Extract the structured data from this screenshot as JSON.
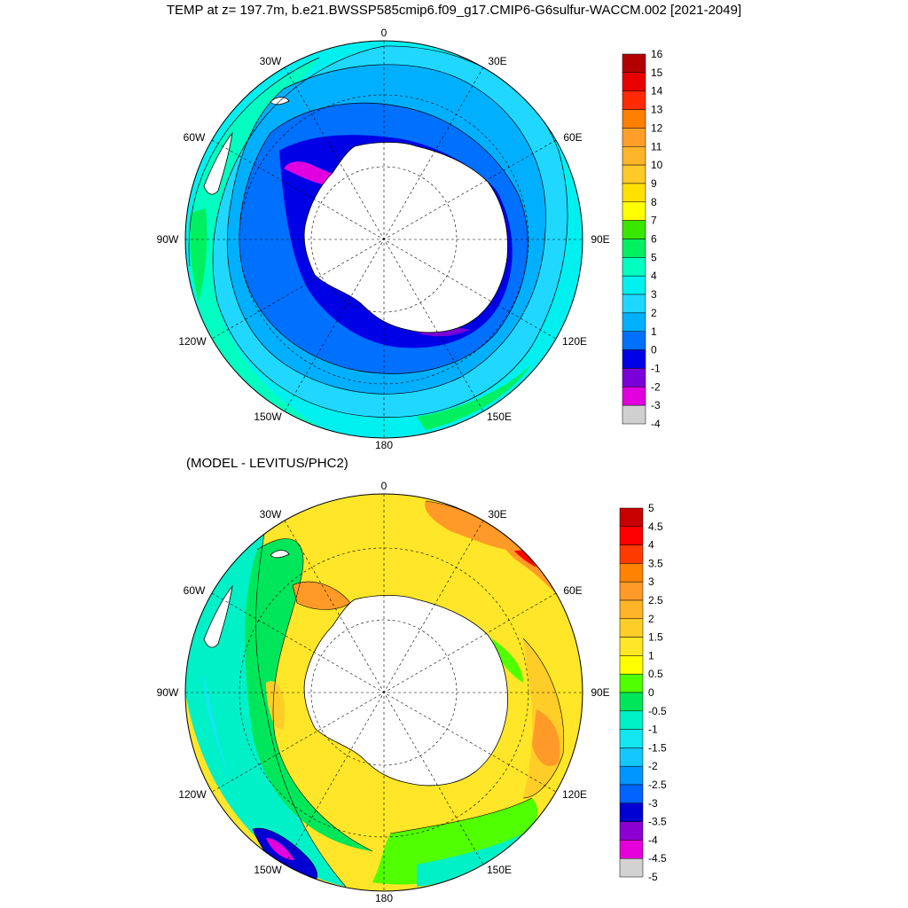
{
  "title": "TEMP at z= 197.7m, b.e21.BWSSP585cmip6.f09_g17.CMIP6-G6sulfur-WACCM.002 [2021-2049]",
  "subtitle": "(MODEL - LEVITUS/PHC2)",
  "longitude_labels": {
    "lon0": "0",
    "lon30e": "30E",
    "lon60e": "60E",
    "lon90e": "90E",
    "lon120e": "120E",
    "lon150e": "150E",
    "lon180": "180",
    "lon150w": "150W",
    "lon120w": "120W",
    "lon90w": "90W",
    "lon60w": "60W",
    "lon30w": "30W"
  },
  "colorbar_top": {
    "labels": [
      "16",
      "15",
      "14",
      "13",
      "12",
      "11",
      "10",
      "9",
      "8",
      "7",
      "6",
      "5",
      "4",
      "3",
      "2",
      "1",
      "0",
      "-1",
      "-2",
      "-3",
      "-4"
    ],
    "colors": [
      "#b30000",
      "#e80000",
      "#ff2a00",
      "#ff7f00",
      "#ff9f2a",
      "#ffb42a",
      "#ffc92a",
      "#ffe000",
      "#ffff00",
      "#39e600",
      "#00f060",
      "#00ffc0",
      "#00f0f0",
      "#20d8ff",
      "#00b0ff",
      "#0070ff",
      "#0000e6",
      "#7a00d9",
      "#e000e0",
      "#d0d0d0"
    ]
  },
  "colorbar_bottom": {
    "labels": [
      "5",
      "4.5",
      "4",
      "3.5",
      "3",
      "2.5",
      "2",
      "1.5",
      "1",
      "0.5",
      "0",
      "-0.5",
      "-1",
      "-1.5",
      "-2",
      "-2.5",
      "-3",
      "-3.5",
      "-4",
      "-4.5",
      "-5"
    ],
    "colors": [
      "#c80000",
      "#ff0000",
      "#ff3a00",
      "#ff8200",
      "#ff9a28",
      "#ffb428",
      "#ffcd28",
      "#ffe628",
      "#ffff00",
      "#50ff00",
      "#00e65a",
      "#00f0c8",
      "#14e6f0",
      "#14c8ff",
      "#0096ff",
      "#0064ff",
      "#0000d2",
      "#8c00d2",
      "#e600dc",
      "#d2d2d2"
    ]
  },
  "colors": {
    "land": "#ffffff",
    "outline": "#000000",
    "graticule": "#000000"
  }
}
